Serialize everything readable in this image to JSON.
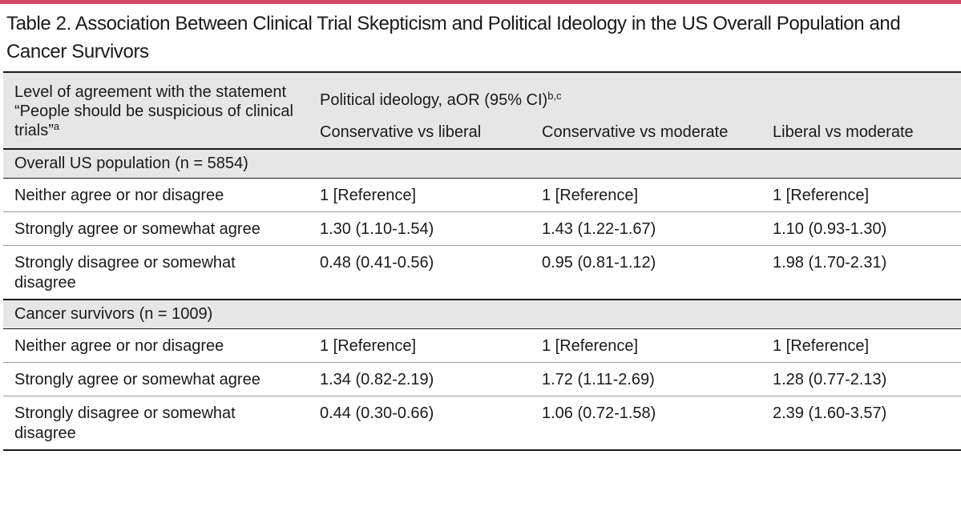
{
  "page": {
    "accent_color": "#d6466a",
    "title": "Table 2. Association Between Clinical Trial Skepticism and Political Ideology in the US Overall Population and Cancer Survivors"
  },
  "table": {
    "corner_header": "Level of agreement with the statement “People should be suspicious of clinical trials”",
    "corner_header_sup": "a",
    "group_header": "Political ideology, aOR (95% CI)",
    "group_header_sup": "b,c",
    "columns": [
      "Conservative vs liberal",
      "Conservative vs moderate",
      "Liberal vs moderate"
    ],
    "sections": [
      {
        "label": "Overall US population (n = 5854)",
        "rows": [
          {
            "label": "Neither agree or nor disagree",
            "values": [
              "1 [Reference]",
              "1 [Reference]",
              "1 [Reference]"
            ]
          },
          {
            "label": "Strongly agree or somewhat agree",
            "values": [
              "1.30 (1.10-1.54)",
              "1.43 (1.22-1.67)",
              "1.10 (0.93-1.30)"
            ]
          },
          {
            "label": "Strongly disagree or somewhat disagree",
            "values": [
              "0.48 (0.41-0.56)",
              "0.95 (0.81-1.12)",
              "1.98 (1.70-2.31)"
            ]
          }
        ]
      },
      {
        "label": "Cancer survivors (n = 1009)",
        "rows": [
          {
            "label": "Neither agree or nor disagree",
            "values": [
              "1 [Reference]",
              "1 [Reference]",
              "1 [Reference]"
            ]
          },
          {
            "label": "Strongly agree or somewhat agree",
            "values": [
              "1.34 (0.82-2.19)",
              "1.72 (1.11-2.69)",
              "1.28 (0.77-2.13)"
            ]
          },
          {
            "label": "Strongly disagree or somewhat disagree",
            "values": [
              "0.44 (0.30-0.66)",
              "1.06 (0.72-1.58)",
              "2.39 (1.60-3.57)"
            ]
          }
        ]
      }
    ]
  }
}
